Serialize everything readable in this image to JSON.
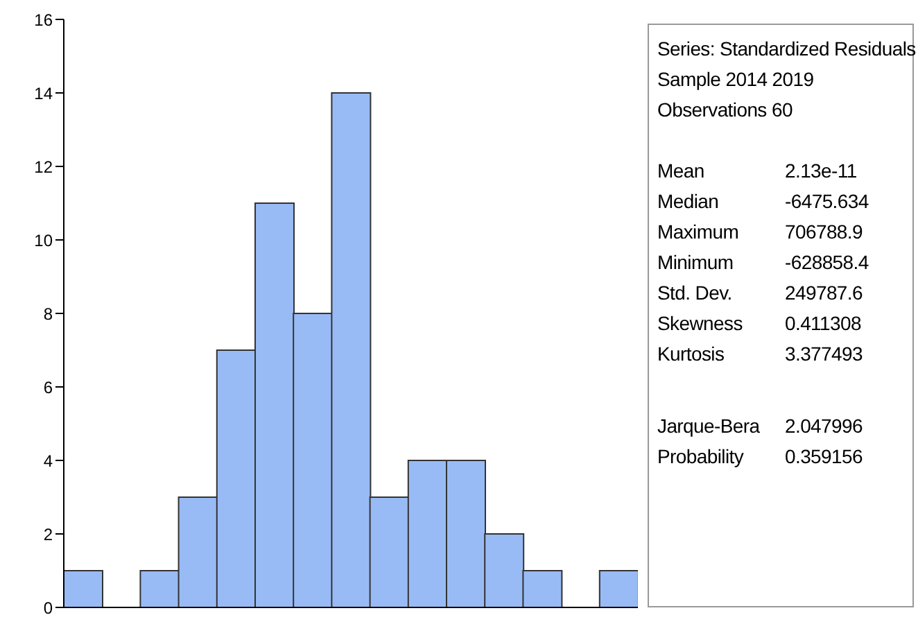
{
  "chart_data": {
    "type": "histogram",
    "categories": [
      null,
      null,
      null,
      null,
      null,
      null,
      null,
      null,
      null,
      null,
      null,
      null,
      null,
      null,
      null
    ],
    "values": [
      1,
      0,
      1,
      3,
      7,
      11,
      8,
      14,
      3,
      4,
      4,
      2,
      1,
      0,
      1
    ],
    "color": "#99bbf5",
    "ylim": [
      0,
      16
    ],
    "yticks": [
      0,
      2,
      4,
      6,
      8,
      10,
      12,
      14,
      16
    ],
    "tick_labels": "y",
    "annotations": [
      "Series: Standardized Residuals",
      "Sample 2014 2019",
      "Observations 60",
      "Mean",
      "2.13e-11",
      "Median",
      "-6475.634",
      "Maximum",
      "706788.9",
      "Minimum",
      "-628858.4",
      "Std. Dev.",
      "249787.6",
      "Skewness",
      "0.411308",
      "Kurtosis",
      "3.377493",
      "Jarque-Bera",
      "2.047996",
      "Probability",
      "0.359156"
    ]
  }
}
